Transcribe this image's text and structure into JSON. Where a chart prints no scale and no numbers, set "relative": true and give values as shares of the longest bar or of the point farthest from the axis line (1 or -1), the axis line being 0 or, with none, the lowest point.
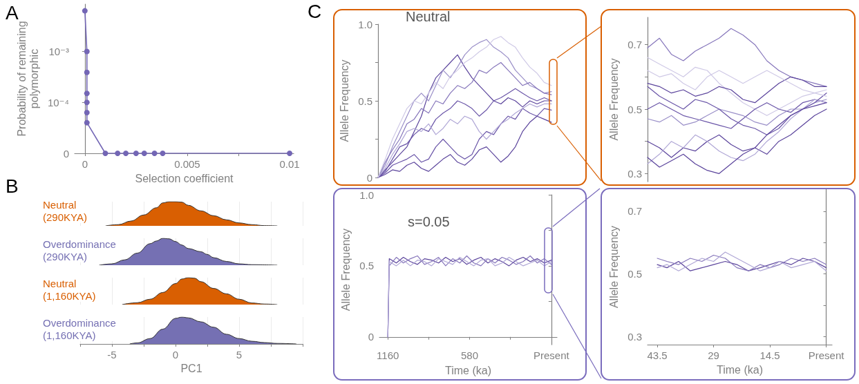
{
  "chart_data": [
    {
      "type": "line",
      "annotations": [
        "A"
      ],
      "xlabel": "Selection coefficient",
      "ylabel": "Probability of remaining polymorphic",
      "log": "y",
      "marker": "circle",
      "line_style": "solid",
      "x": [
        0,
        0.0001,
        0.0001,
        0.0001,
        0.0001,
        0.0001,
        0.0001,
        0.001,
        0.0016,
        0.002,
        0.0025,
        0.0029,
        0.0034,
        0.0038,
        0.01
      ],
      "series": [
        {
          "color": "#7366b5",
          "values": [
            0.0063,
            0.001,
            0.00039,
            0.00015,
            0.0001,
            6.3e-05,
            4e-05,
            1e-05,
            1e-05,
            1e-05,
            1e-05,
            1e-05,
            1e-05,
            1e-05,
            1e-05
          ]
        }
      ],
      "xlim": [
        -0.0005,
        0.0102
      ],
      "ylim": [
        1e-05,
        0.0085
      ],
      "xticks": [
        0,
        {
          "value": 0.0025,
          "label": null
        },
        0.005,
        {
          "value": 0.0075,
          "label": null
        },
        0.01
      ],
      "yticks": [
        {
          "value": 1e-05,
          "label": "0"
        },
        {
          "value": 0.0001,
          "label": "10⁻⁴"
        },
        {
          "value": 0.001,
          "label": "10⁻³"
        }
      ]
    },
    {
      "type": "area",
      "relative": true,
      "annotations": [
        "B"
      ],
      "grid": "x",
      "tick_labels": false,
      "xlim": [
        -7.5,
        10
      ],
      "xticks": [
        {
          "value": -7.5,
          "label": null
        },
        -5,
        {
          "value": -2.5,
          "label": null
        },
        0,
        {
          "value": 2.5,
          "label": null
        },
        5,
        {
          "value": 7.5,
          "label": null
        },
        {
          "value": 10,
          "label": null
        }
      ],
      "x": [
        -5.5,
        -4.5,
        -3.5,
        -2.5,
        -1.5,
        -1,
        -0.5,
        0,
        0.5,
        1,
        2,
        3,
        4,
        5,
        6,
        7,
        8
      ],
      "series": [
        {
          "name": "Neutral (290KYA)",
          "color": "#d95f02",
          "values": [
            0,
            0.05,
            0.2,
            0.45,
            0.75,
            0.95,
            1,
            1,
            0.98,
            0.85,
            0.62,
            0.42,
            0.25,
            0.12,
            0.05,
            0.01,
            0
          ]
        }
      ]
    },
    {
      "type": "area",
      "relative": true,
      "grid": "x",
      "tick_labels": false,
      "xlim": [
        -7.5,
        10
      ],
      "xticks": [
        {
          "value": -7.5,
          "label": null
        },
        -5,
        {
          "value": -2.5,
          "label": null
        },
        0,
        {
          "value": 2.5,
          "label": null
        },
        5,
        {
          "value": 7.5,
          "label": null
        },
        {
          "value": 10,
          "label": null
        }
      ],
      "x": [
        -6,
        -5,
        -4,
        -3,
        -2,
        -1.5,
        -1,
        -0.5,
        0,
        0.5,
        1,
        2,
        2.5,
        3,
        4,
        5,
        6,
        8
      ],
      "series": [
        {
          "name": "Overdominance (290KYA)",
          "color": "#7570b3",
          "values": [
            0,
            0.05,
            0.2,
            0.45,
            0.8,
            0.9,
            1,
            0.98,
            0.88,
            0.75,
            0.62,
            0.5,
            0.4,
            0.28,
            0.14,
            0.05,
            0.02,
            0
          ]
        }
      ]
    },
    {
      "type": "area",
      "relative": true,
      "grid": "x",
      "tick_labels": false,
      "xlim": [
        -7.5,
        10
      ],
      "xticks": [
        {
          "value": -7.5,
          "label": null
        },
        -5,
        {
          "value": -2.5,
          "label": null
        },
        0,
        {
          "value": 2.5,
          "label": null
        },
        5,
        {
          "value": 7.5,
          "label": null
        },
        {
          "value": 10,
          "label": null
        }
      ],
      "x": [
        -4.2,
        -3,
        -2,
        -1,
        0,
        0.5,
        1,
        1.5,
        2,
        3,
        4,
        5,
        6,
        7,
        8
      ],
      "series": [
        {
          "name": "Neutral (1,160KYA)",
          "color": "#d95f02",
          "values": [
            0,
            0.07,
            0.2,
            0.45,
            0.78,
            0.95,
            1,
            0.98,
            0.85,
            0.6,
            0.4,
            0.2,
            0.06,
            0.02,
            0
          ]
        }
      ]
    },
    {
      "type": "area",
      "relative": true,
      "grid": "x",
      "xlabel": "PC1",
      "xlim": [
        -7.5,
        10
      ],
      "xticks": [
        {
          "value": -7.5,
          "label": null
        },
        -5,
        {
          "value": -2.5,
          "label": null
        },
        0,
        {
          "value": 2.5,
          "label": null
        },
        5,
        {
          "value": 7.5,
          "label": null
        },
        {
          "value": 10,
          "label": null
        }
      ],
      "x": [
        -3.6,
        -3,
        -2,
        -1,
        0,
        0.5,
        1,
        2,
        3,
        4,
        5,
        6,
        7,
        8,
        9.5
      ],
      "series": [
        {
          "name": "Overdominance (1,160KYA)",
          "color": "#7570b3",
          "values": [
            0,
            0.04,
            0.2,
            0.55,
            0.95,
            1,
            0.97,
            0.82,
            0.62,
            0.36,
            0.2,
            0.1,
            0.05,
            0.02,
            0
          ]
        }
      ]
    },
    {
      "type": "line",
      "title": "Neutral",
      "annotations": [
        "C"
      ],
      "ylabel": "Allele Frequency",
      "tick_labels": "y",
      "ylim": [
        0,
        1
      ],
      "yticks": [
        0,
        {
          "value": 0.25,
          "label": null
        },
        0.5,
        {
          "value": 0.75,
          "label": null
        },
        {
          "value": 1,
          "label": "1.0"
        }
      ],
      "categories": [
        null,
        null,
        null,
        null,
        null,
        null,
        null,
        null,
        null,
        null,
        null,
        null,
        null,
        null,
        null,
        null,
        null,
        null,
        null,
        null,
        null,
        null,
        null,
        null,
        null
      ],
      "series": [
        {
          "color": "#5b449c",
          "values": [
            0,
            0.05,
            0.1,
            0.15,
            0.2,
            0.3,
            0.4,
            0.55,
            0.65,
            0.7,
            0.75,
            0.8,
            0.72,
            0.65,
            0.6,
            0.55,
            0.5,
            0.48,
            0.52,
            0.5,
            0.46,
            0.5,
            0.48,
            0.5,
            0.5
          ]
        },
        {
          "color": "#6a55a8",
          "values": [
            0,
            0.03,
            0.08,
            0.1,
            0.12,
            0.15,
            0.1,
            0.12,
            0.2,
            0.25,
            0.2,
            0.15,
            0.12,
            0.15,
            0.25,
            0.3,
            0.28,
            0.35,
            0.4,
            0.38,
            0.45,
            0.42,
            0.4,
            0.45,
            0.44
          ]
        },
        {
          "color": "#9a8fc8",
          "values": [
            0,
            0.08,
            0.2,
            0.3,
            0.4,
            0.5,
            0.55,
            0.5,
            0.6,
            0.7,
            0.65,
            0.72,
            0.8,
            0.85,
            0.88,
            0.9,
            0.85,
            0.82,
            0.78,
            0.7,
            0.65,
            0.6,
            0.58,
            0.55,
            0.56
          ]
        },
        {
          "color": "#5b449c",
          "values": [
            0,
            0.02,
            0.05,
            0.04,
            0.08,
            0.1,
            0.06,
            0.04,
            0.08,
            0.12,
            0.15,
            0.1,
            0.08,
            0.12,
            0.18,
            0.2,
            0.15,
            0.1,
            0.14,
            0.2,
            0.3,
            0.36,
            0.4,
            0.38,
            0.36
          ]
        },
        {
          "color": "#8676bb",
          "values": [
            0,
            0.1,
            0.18,
            0.25,
            0.35,
            0.38,
            0.45,
            0.42,
            0.5,
            0.48,
            0.55,
            0.6,
            0.58,
            0.62,
            0.7,
            0.68,
            0.72,
            0.75,
            0.7,
            0.65,
            0.6,
            0.62,
            0.58,
            0.55,
            0.54
          ]
        },
        {
          "color": "#6a55a8",
          "values": [
            0,
            0.04,
            0.12,
            0.2,
            0.22,
            0.28,
            0.32,
            0.3,
            0.38,
            0.42,
            0.45,
            0.5,
            0.48,
            0.45,
            0.4,
            0.44,
            0.5,
            0.52,
            0.55,
            0.58,
            0.55,
            0.52,
            0.5,
            0.52,
            0.5
          ]
        },
        {
          "color": "#b0a7d6",
          "values": [
            0,
            0.06,
            0.15,
            0.22,
            0.3,
            0.32,
            0.3,
            0.35,
            0.28,
            0.32,
            0.38,
            0.35,
            0.4,
            0.38,
            0.3,
            0.25,
            0.3,
            0.35,
            0.38,
            0.42,
            0.45,
            0.48,
            0.46,
            0.48,
            0.48
          ]
        },
        {
          "color": "#cfc9e6",
          "values": [
            0,
            0.12,
            0.25,
            0.35,
            0.45,
            0.5,
            0.48,
            0.55,
            0.62,
            0.58,
            0.66,
            0.7,
            0.75,
            0.78,
            0.82,
            0.85,
            0.9,
            0.92,
            0.88,
            0.85,
            0.78,
            0.72,
            0.68,
            0.62,
            0.6
          ]
        }
      ]
    },
    {
      "type": "line",
      "ylabel": "Allele Frequency",
      "tick_labels": "y",
      "ylim": [
        0.275,
        0.785
      ],
      "yticks": [
        0.3,
        {
          "value": 0.4,
          "label": null
        },
        0.5,
        {
          "value": 0.6,
          "label": null
        },
        0.7
      ],
      "categories": [
        null,
        null,
        null,
        null,
        null,
        null,
        null,
        null,
        null,
        null,
        null,
        null,
        null,
        null,
        null,
        null
      ],
      "series": [
        {
          "color": "#8676bb",
          "values": [
            0.69,
            0.72,
            0.67,
            0.65,
            0.68,
            0.7,
            0.72,
            0.75,
            0.73,
            0.7,
            0.65,
            0.62,
            0.6,
            0.59,
            0.58,
            0.57
          ]
        },
        {
          "color": "#cfc9e6",
          "values": [
            0.66,
            0.64,
            0.62,
            0.6,
            0.63,
            0.62,
            0.58,
            0.55,
            0.52,
            0.5,
            0.48,
            0.5,
            0.52,
            0.54,
            0.55,
            0.56
          ]
        },
        {
          "color": "#5b449c",
          "values": [
            0.58,
            0.57,
            0.55,
            0.56,
            0.54,
            0.55,
            0.57,
            0.56,
            0.53,
            0.52,
            0.55,
            0.58,
            0.6,
            0.59,
            0.57,
            0.57
          ]
        },
        {
          "color": "#6a55a8",
          "values": [
            0.5,
            0.52,
            0.5,
            0.48,
            0.47,
            0.46,
            0.45,
            0.44,
            0.47,
            0.5,
            0.52,
            0.5,
            0.49,
            0.52,
            0.53,
            0.52
          ]
        },
        {
          "color": "#9a8fc8",
          "values": [
            0.47,
            0.46,
            0.48,
            0.45,
            0.46,
            0.48,
            0.5,
            0.49,
            0.48,
            0.46,
            0.45,
            0.48,
            0.5,
            0.5,
            0.52,
            0.53
          ]
        },
        {
          "color": "#5b449c",
          "values": [
            0.4,
            0.38,
            0.35,
            0.38,
            0.37,
            0.4,
            0.42,
            0.39,
            0.37,
            0.38,
            0.36,
            0.4,
            0.42,
            0.45,
            0.48,
            0.5
          ]
        },
        {
          "color": "#b0a7d6",
          "values": [
            0.33,
            0.36,
            0.4,
            0.38,
            0.42,
            0.4,
            0.37,
            0.35,
            0.34,
            0.36,
            0.4,
            0.43,
            0.47,
            0.5,
            0.53,
            0.52
          ]
        },
        {
          "color": "#6a55a8",
          "values": [
            0.57,
            0.54,
            0.52,
            0.5,
            0.53,
            0.52,
            0.5,
            0.47,
            0.45,
            0.44,
            0.42,
            0.44,
            0.48,
            0.5,
            0.52,
            0.55
          ]
        },
        {
          "color": "#5b449c",
          "values": [
            0.35,
            0.32,
            0.34,
            0.36,
            0.33,
            0.31,
            0.3,
            0.33,
            0.36,
            0.38,
            0.42,
            0.45,
            0.48,
            0.5,
            0.51,
            0.52
          ]
        },
        {
          "color": "#cfc9e6",
          "values": [
            0.62,
            0.6,
            0.61,
            0.58,
            0.56,
            0.6,
            0.62,
            0.6,
            0.58,
            0.6,
            0.62,
            0.6,
            0.58,
            0.56,
            0.55,
            0.54
          ]
        }
      ]
    },
    {
      "type": "line",
      "title": "s=0.05",
      "xlabel": "Time (ka)",
      "ylabel": "Allele Frequency",
      "xlim": [
        1220,
        -40
      ],
      "ylim": [
        -0.055,
        1
      ],
      "xticks": [
        1160,
        {
          "value": 870,
          "label": null
        },
        580,
        {
          "value": 290,
          "label": null
        },
        {
          "value": 0,
          "label": "Present"
        }
      ],
      "yticks": [
        0,
        {
          "value": 0.25,
          "label": null
        },
        0.5,
        {
          "value": 0.75,
          "label": null
        },
        {
          "value": 1,
          "label": "1.0"
        }
      ],
      "x": [
        1160,
        1150,
        1100,
        1050,
        1000,
        950,
        900,
        850,
        800,
        750,
        700,
        650,
        600,
        550,
        500,
        450,
        400,
        350,
        300,
        250,
        200,
        150,
        100,
        50,
        0
      ],
      "series": [
        {
          "color": "#5b449c",
          "values": [
            0,
            0.55,
            0.52,
            0.56,
            0.53,
            0.51,
            0.55,
            0.54,
            0.52,
            0.56,
            0.53,
            0.55,
            0.51,
            0.54,
            0.56,
            0.52,
            0.55,
            0.53,
            0.5,
            0.54,
            0.56,
            0.53,
            0.55,
            0.52,
            0.54
          ]
        },
        {
          "color": "#8676bb",
          "values": [
            0,
            0.5,
            0.56,
            0.52,
            0.55,
            0.57,
            0.51,
            0.53,
            0.56,
            0.5,
            0.55,
            0.52,
            0.57,
            0.52,
            0.5,
            0.55,
            0.52,
            0.56,
            0.54,
            0.51,
            0.53,
            0.57,
            0.52,
            0.55,
            0.51
          ]
        },
        {
          "color": "#b0a7d6",
          "values": [
            0,
            0.53,
            0.5,
            0.54,
            0.5,
            0.54,
            0.53,
            0.5,
            0.55,
            0.53,
            0.51,
            0.56,
            0.53,
            0.5,
            0.54,
            0.55,
            0.5,
            0.52,
            0.56,
            0.53,
            0.5,
            0.52,
            0.54,
            0.5,
            0.53
          ]
        }
      ]
    },
    {
      "type": "line",
      "xlabel": "Time (ka)",
      "ylabel": "Allele Frequency",
      "xlim": [
        46,
        -1.5
      ],
      "ylim": [
        0.275,
        0.77
      ],
      "xticks": [
        43.5,
        29,
        14.5,
        {
          "value": 0,
          "label": "Present"
        }
      ],
      "yticks": [
        0.3,
        {
          "value": 0.4,
          "label": null
        },
        0.5,
        {
          "value": 0.6,
          "label": null
        },
        0.7
      ],
      "x": [
        43.5,
        41,
        38,
        35,
        32,
        29,
        26,
        23,
        20,
        17,
        14.5,
        12,
        9,
        6,
        3,
        0
      ],
      "series": [
        {
          "color": "#5b449c",
          "values": [
            0.53,
            0.52,
            0.54,
            0.51,
            0.52,
            0.53,
            0.54,
            0.53,
            0.51,
            0.52,
            0.53,
            0.54,
            0.53,
            0.55,
            0.54,
            0.52
          ]
        },
        {
          "color": "#8676bb",
          "values": [
            0.55,
            0.54,
            0.53,
            0.55,
            0.54,
            0.56,
            0.55,
            0.52,
            0.51,
            0.53,
            0.52,
            0.53,
            0.55,
            0.54,
            0.55,
            0.53
          ]
        },
        {
          "color": "#b0a7d6",
          "values": [
            0.52,
            0.53,
            0.51,
            0.53,
            0.55,
            0.54,
            0.57,
            0.55,
            0.53,
            0.51,
            0.52,
            0.54,
            0.52,
            0.53,
            0.54,
            0.51
          ]
        }
      ]
    }
  ]
}
